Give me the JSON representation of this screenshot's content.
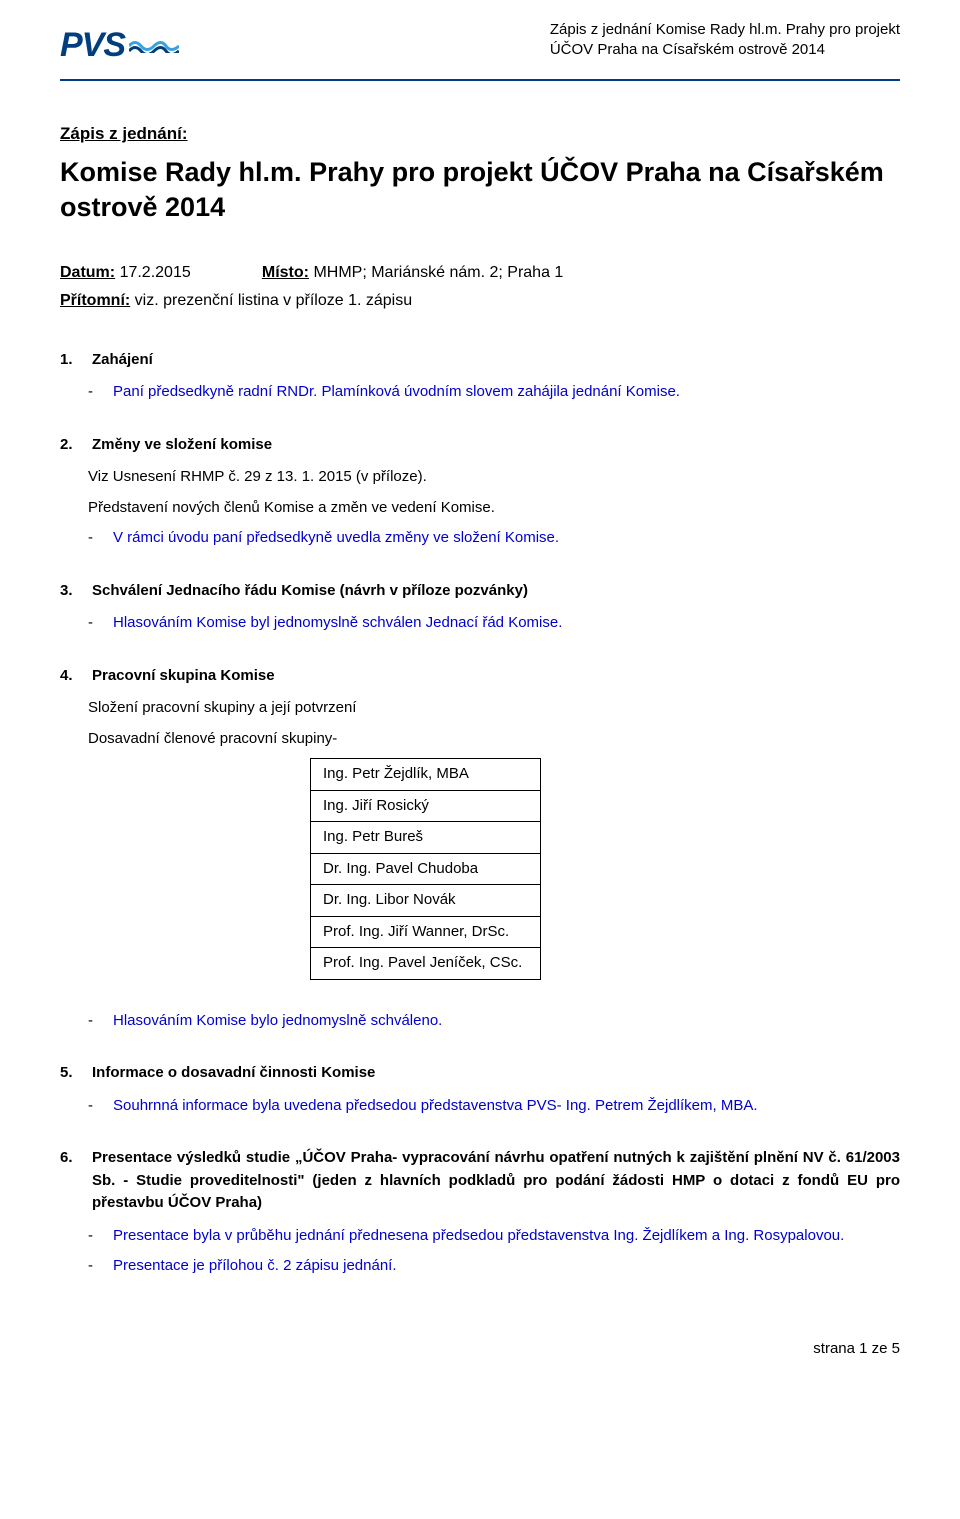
{
  "colors": {
    "brand": "#003e7f",
    "link_blue": "#0000d0",
    "text": "#000000",
    "background": "#ffffff",
    "border": "#000000"
  },
  "typography": {
    "body_fontsize_pt": 11,
    "title_fontsize_pt": 20,
    "header_fontsize_pt": 11
  },
  "header": {
    "logo_text": "PVS",
    "line1": "Zápis z jednání Komise Rady hl.m. Prahy pro projekt",
    "line2": "ÚČOV Praha na Císařském ostrově 2014"
  },
  "title_label": "Zápis z jednání:",
  "main_title": "Komise Rady hl.m. Prahy pro projekt ÚČOV Praha na Císařském ostrově 2014",
  "meta": {
    "datum_label": "Datum:",
    "datum_value": "17.2.2015",
    "misto_label": "Místo:",
    "misto_value": "MHMP; Mariánské nám. 2; Praha 1",
    "pritomni_label": "Přítomní:",
    "pritomni_value": "viz. prezenční listina v příloze 1. zápisu"
  },
  "sections": [
    {
      "num": "1.",
      "heading": "Zahájení",
      "items": [
        {
          "dash": "-",
          "text": "Paní předsedkyně radní RNDr. Plamínková úvodním slovem zahájila jednání Komise.",
          "blue": true
        }
      ]
    },
    {
      "num": "2.",
      "heading": "Změny ve složení komise",
      "plain": [
        "Viz Usnesení RHMP č. 29 z 13. 1. 2015 (v příloze).",
        "Představení nových členů Komise a změn ve vedení Komise."
      ],
      "items": [
        {
          "dash": "-",
          "text": "V rámci úvodu paní předsedkyně uvedla změny ve složení Komise.",
          "blue": true
        }
      ]
    },
    {
      "num": "3.",
      "heading": "Schválení Jednacího řádu Komise (návrh v příloze pozvánky)",
      "items": [
        {
          "dash": "-",
          "text": "Hlasováním Komise byl jednomyslně schválen Jednací řád Komise.",
          "blue": true
        }
      ]
    },
    {
      "num": "4.",
      "heading": "Pracovní skupina Komise",
      "plain": [
        "Složení pracovní skupiny a její potvrzení",
        "Dosavadní členové pracovní skupiny-"
      ],
      "members": [
        "Ing. Petr Žejdlík, MBA",
        "Ing. Jiří Rosický",
        "Ing. Petr Bureš",
        "Dr. Ing. Pavel Chudoba",
        "Dr. Ing. Libor Novák",
        "Prof. Ing. Jiří Wanner, DrSc.",
        "Prof. Ing. Pavel Jeníček, CSc."
      ],
      "after_items": [
        {
          "dash": "-",
          "text": "Hlasováním Komise bylo jednomyslně schváleno.",
          "blue": true
        }
      ]
    },
    {
      "num": "5.",
      "heading": "Informace o dosavadní činnosti Komise",
      "items": [
        {
          "dash": "-",
          "text": "Souhrnná informace byla uvedena předsedou představenstva PVS- Ing.  Petrem Žejdlíkem, MBA.",
          "blue": true
        }
      ]
    },
    {
      "num": "6.",
      "heading": "Presentace výsledků studie „ÚČOV Praha- vypracování návrhu opatření nutných k zajištění plnění NV č. 61/2003 Sb. - Studie proveditelnosti\" (jeden z hlavních podkladů pro podání žádosti HMP o dotaci z fondů EU pro přestavbu ÚČOV Praha)",
      "items": [
        {
          "dash": "-",
          "text": "Presentace byla v průběhu jednání přednesena předsedou představenstva Ing. Žejdlíkem a Ing. Rosypalovou.",
          "blue": true
        },
        {
          "dash": "-",
          "text": "Presentace je přílohou č. 2 zápisu jednání.",
          "blue": true
        }
      ]
    }
  ],
  "footer": "strana 1 ze 5"
}
